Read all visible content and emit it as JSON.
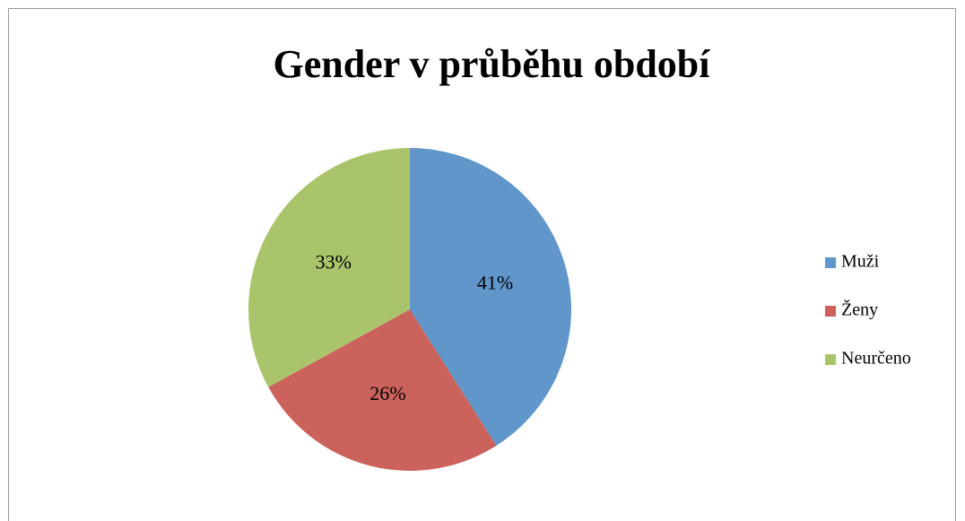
{
  "chart_data": {
    "type": "pie",
    "title": "Gender v průběhu období",
    "categories": [
      "Muži",
      "Ženy",
      "Neurčeno"
    ],
    "values": [
      41,
      26,
      33
    ],
    "value_labels": [
      "41%",
      "26%",
      "33%"
    ],
    "colors": [
      "#6096c9",
      "#cb625c",
      "#aac46c"
    ],
    "legend": "right"
  }
}
